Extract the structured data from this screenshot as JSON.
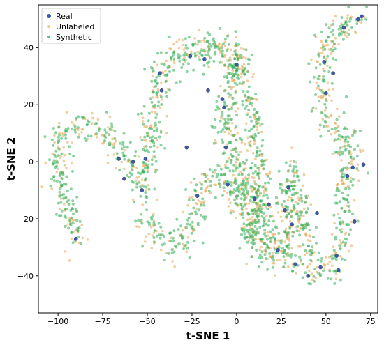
{
  "chart_data": {
    "type": "scatter",
    "title": "",
    "xlabel": "t-SNE 1",
    "ylabel": "t-SNE 2",
    "xlim": [
      -111,
      79
    ],
    "ylim": [
      -53,
      55
    ],
    "xticks": [
      -100,
      -75,
      -50,
      -25,
      0,
      25,
      50,
      75
    ],
    "yticks": [
      -40,
      -20,
      0,
      20,
      40
    ],
    "xtick_labels": [
      "−100",
      "−75",
      "−50",
      "−25",
      "0",
      "25",
      "50",
      "75"
    ],
    "ytick_labels": [
      "−40",
      "−20",
      "0",
      "20",
      "40"
    ],
    "grid": false,
    "legend": {
      "placement": "top-left",
      "entries": [
        {
          "name": "Real",
          "color": "#3b5aa8"
        },
        {
          "name": "Unlabeled",
          "color": "#e6a44b"
        },
        {
          "name": "Synthetic",
          "color": "#2fae56"
        }
      ]
    },
    "manifold_path": [
      [
        -89,
        -28
      ],
      [
        -93,
        -20
      ],
      [
        -97,
        -12
      ],
      [
        -100,
        -4
      ],
      [
        -100,
        3
      ],
      [
        -97,
        9
      ],
      [
        -90,
        12
      ],
      [
        -82,
        13
      ],
      [
        -76,
        11
      ],
      [
        -69,
        7
      ],
      [
        -62,
        2
      ],
      [
        -57,
        -4
      ],
      [
        -52,
        -8
      ],
      [
        -50,
        -2
      ],
      [
        -48,
        6
      ],
      [
        -47,
        15
      ],
      [
        -45,
        25
      ],
      [
        -42,
        32
      ],
      [
        -35,
        36
      ],
      [
        -27,
        37
      ],
      [
        -19,
        39
      ],
      [
        -10,
        40
      ],
      [
        -4,
        38
      ],
      [
        -2,
        30
      ],
      [
        -6,
        20
      ],
      [
        -5,
        10
      ],
      [
        -2,
        2
      ],
      [
        3,
        -5
      ],
      [
        9,
        -12
      ],
      [
        15,
        -20
      ],
      [
        21,
        -28
      ],
      [
        24,
        -34
      ],
      [
        27,
        -37
      ],
      [
        30,
        -36
      ],
      [
        29,
        -24
      ],
      [
        28,
        -12
      ],
      [
        29,
        -4
      ],
      [
        31,
        -6
      ],
      [
        34,
        -12
      ],
      [
        38,
        -20
      ],
      [
        40,
        -28
      ],
      [
        41,
        -36
      ],
      [
        45,
        -38
      ],
      [
        52,
        -36
      ],
      [
        57,
        -32
      ],
      [
        60,
        -25
      ],
      [
        61,
        -16
      ],
      [
        62,
        -6
      ],
      [
        63,
        2
      ],
      [
        62,
        8
      ],
      [
        56,
        12
      ],
      [
        50,
        16
      ],
      [
        48,
        24
      ],
      [
        48,
        32
      ],
      [
        49,
        38
      ],
      [
        51,
        43
      ],
      [
        56,
        47
      ],
      [
        62,
        49
      ],
      [
        70,
        51
      ]
    ],
    "manifold_path_2": [
      [
        -55,
        -18
      ],
      [
        -50,
        -22
      ],
      [
        -44,
        -26
      ],
      [
        -36,
        -28
      ],
      [
        -29,
        -28
      ],
      [
        -25,
        -22
      ],
      [
        -22,
        -14
      ],
      [
        -18,
        -8
      ],
      [
        -12,
        -6
      ],
      [
        -5,
        -8
      ],
      [
        0,
        -12
      ],
      [
        4,
        -14
      ],
      [
        6,
        -20
      ],
      [
        8,
        -26
      ],
      [
        12,
        -30
      ],
      [
        18,
        -32
      ],
      [
        22,
        -28
      ]
    ],
    "manifold_path_3": [
      [
        -8,
        36
      ],
      [
        0,
        36
      ],
      [
        4,
        32
      ],
      [
        6,
        24
      ],
      [
        8,
        16
      ],
      [
        10,
        8
      ],
      [
        12,
        2
      ],
      [
        14,
        -4
      ],
      [
        13,
        -12
      ],
      [
        10,
        -20
      ],
      [
        8,
        -28
      ]
    ],
    "spread": 3.2,
    "counts": {
      "Unlabeled": 900,
      "Synthetic": 1300,
      "Real": 40
    },
    "point_opacity": 0.55,
    "real_points": [
      [
        -90,
        -27
      ],
      [
        -63,
        -6
      ],
      [
        -58,
        0
      ],
      [
        -53,
        -10
      ],
      [
        -51,
        1
      ],
      [
        -43,
        31
      ],
      [
        -42,
        25
      ],
      [
        -26,
        37
      ],
      [
        -22,
        -12
      ],
      [
        -18,
        36
      ],
      [
        -16,
        25
      ],
      [
        -8,
        22
      ],
      [
        -7,
        19
      ],
      [
        -6,
        5
      ],
      [
        0,
        34
      ],
      [
        -5,
        -8
      ],
      [
        10,
        -13
      ],
      [
        18,
        -15
      ],
      [
        23,
        -31
      ],
      [
        27,
        -17
      ],
      [
        29,
        -9
      ],
      [
        31,
        -22
      ],
      [
        33,
        -36
      ],
      [
        40,
        -40
      ],
      [
        47,
        -37
      ],
      [
        49,
        35
      ],
      [
        50,
        24
      ],
      [
        54,
        31
      ],
      [
        56,
        -33
      ],
      [
        57,
        -38
      ],
      [
        60,
        47
      ],
      [
        62,
        -5
      ],
      [
        65,
        -2
      ],
      [
        66,
        -21
      ],
      [
        68,
        50
      ],
      [
        70,
        51
      ],
      [
        71,
        -1
      ],
      [
        -66,
        1
      ],
      [
        -28,
        5
      ],
      [
        45,
        -18
      ]
    ]
  }
}
